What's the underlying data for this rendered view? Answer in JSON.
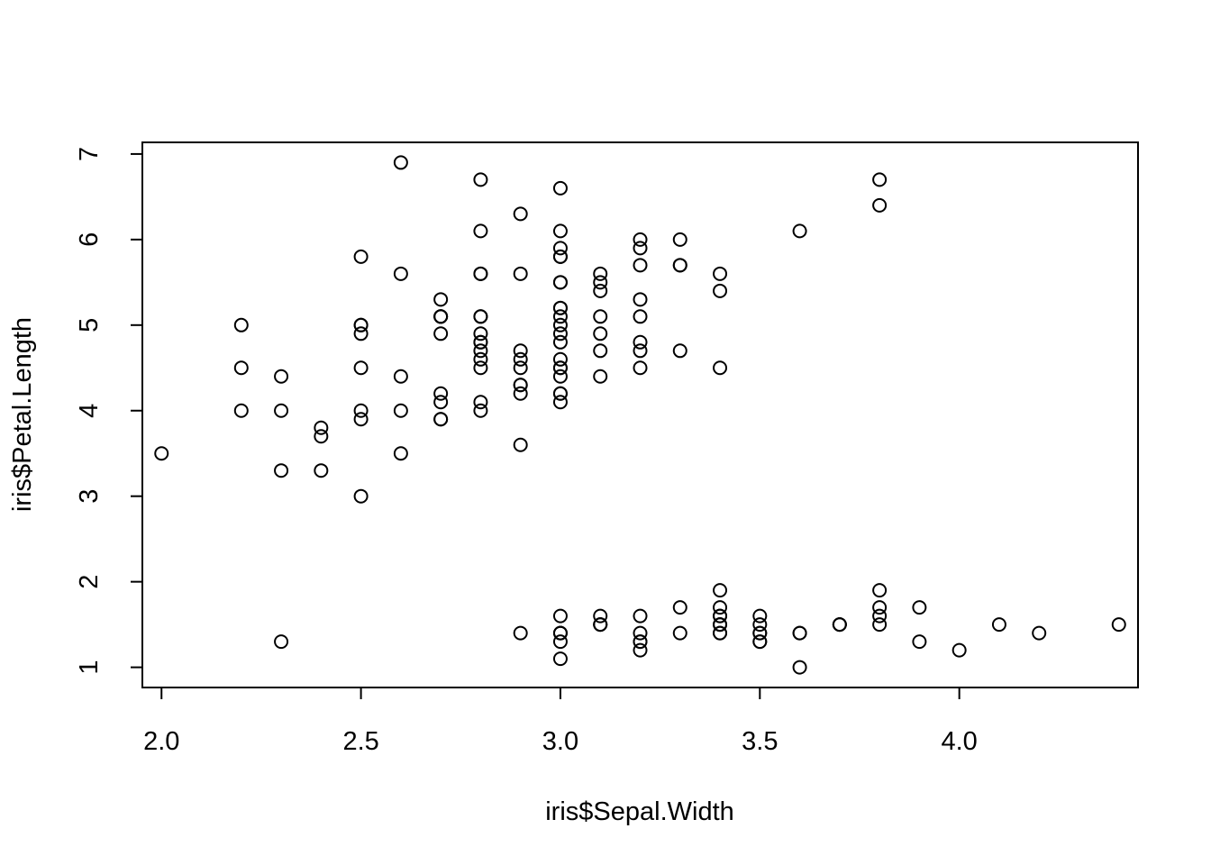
{
  "chart_data": {
    "type": "scatter",
    "title": "",
    "xlabel": "iris$Sepal.Width",
    "ylabel": "iris$Petal.Length",
    "xlim": [
      1.952,
      4.448
    ],
    "ylim": [
      0.764,
      7.136
    ],
    "xticks": [
      2.0,
      2.5,
      3.0,
      3.5,
      4.0
    ],
    "xtick_labels": [
      "2.0",
      "2.5",
      "3.0",
      "3.5",
      "4.0"
    ],
    "yticks": [
      1,
      2,
      3,
      4,
      5,
      6,
      7
    ],
    "ytick_labels": [
      "1",
      "2",
      "3",
      "4",
      "5",
      "6",
      "7"
    ],
    "grid": false,
    "legend": "none",
    "marker": "open-circle",
    "x": [
      3.5,
      3.0,
      3.2,
      3.1,
      3.6,
      3.9,
      3.4,
      3.4,
      2.9,
      3.1,
      3.7,
      3.4,
      3.0,
      3.0,
      4.0,
      4.4,
      3.9,
      3.5,
      3.8,
      3.8,
      3.4,
      3.7,
      3.6,
      3.3,
      3.4,
      3.0,
      3.4,
      3.5,
      3.4,
      3.2,
      3.1,
      3.4,
      4.1,
      4.2,
      3.1,
      3.2,
      3.5,
      3.6,
      3.0,
      3.4,
      3.5,
      2.3,
      3.2,
      3.5,
      3.8,
      3.0,
      3.8,
      3.2,
      3.7,
      3.3,
      3.2,
      3.2,
      3.1,
      2.3,
      2.8,
      2.8,
      3.3,
      2.4,
      2.9,
      2.7,
      2.0,
      3.0,
      2.2,
      2.9,
      2.9,
      3.1,
      3.0,
      2.7,
      2.2,
      2.5,
      3.2,
      2.8,
      2.5,
      2.8,
      2.9,
      3.0,
      2.8,
      3.0,
      2.9,
      2.6,
      2.4,
      2.4,
      2.7,
      2.7,
      3.0,
      3.4,
      3.1,
      2.3,
      3.0,
      2.5,
      2.6,
      3.0,
      2.6,
      2.3,
      2.7,
      3.0,
      2.9,
      2.9,
      2.5,
      2.8,
      3.3,
      2.7,
      3.0,
      2.9,
      3.0,
      3.0,
      2.5,
      2.9,
      2.5,
      3.6,
      3.2,
      2.7,
      3.0,
      2.5,
      2.8,
      3.2,
      3.0,
      3.8,
      2.6,
      2.2,
      3.2,
      2.8,
      2.8,
      2.7,
      3.3,
      3.2,
      2.8,
      3.0,
      2.8,
      3.0,
      2.8,
      3.8,
      2.8,
      2.8,
      2.6,
      3.0,
      3.4,
      3.1,
      3.0,
      3.1,
      3.1,
      3.1,
      2.7,
      3.2,
      3.3,
      3.0,
      2.5,
      3.0,
      3.4,
      3.0
    ],
    "y": [
      1.4,
      1.4,
      1.3,
      1.5,
      1.4,
      1.7,
      1.4,
      1.5,
      1.4,
      1.5,
      1.5,
      1.6,
      1.4,
      1.1,
      1.2,
      1.5,
      1.3,
      1.4,
      1.7,
      1.5,
      1.7,
      1.5,
      1.0,
      1.7,
      1.9,
      1.6,
      1.6,
      1.5,
      1.4,
      1.6,
      1.6,
      1.5,
      1.5,
      1.4,
      1.5,
      1.2,
      1.3,
      1.4,
      1.3,
      1.5,
      1.3,
      1.3,
      1.3,
      1.6,
      1.9,
      1.4,
      1.6,
      1.4,
      1.5,
      1.4,
      4.7,
      4.5,
      4.9,
      4.0,
      4.6,
      4.5,
      4.7,
      3.3,
      4.6,
      3.9,
      3.5,
      4.2,
      4.0,
      4.7,
      3.6,
      4.4,
      4.5,
      4.1,
      4.5,
      3.9,
      4.8,
      4.0,
      4.9,
      4.7,
      4.3,
      4.4,
      4.8,
      5.0,
      4.5,
      3.5,
      3.8,
      3.7,
      3.9,
      5.1,
      4.5,
      4.5,
      4.7,
      4.4,
      4.1,
      4.0,
      4.4,
      4.6,
      4.0,
      3.3,
      4.2,
      4.2,
      4.2,
      4.3,
      3.0,
      4.1,
      6.0,
      5.1,
      5.9,
      5.6,
      5.8,
      6.6,
      4.5,
      6.3,
      5.8,
      6.1,
      5.1,
      5.3,
      5.5,
      5.0,
      5.1,
      5.3,
      5.5,
      6.7,
      6.9,
      5.0,
      5.7,
      4.9,
      6.7,
      4.9,
      5.7,
      6.0,
      4.8,
      4.9,
      5.6,
      5.8,
      6.1,
      6.4,
      5.6,
      5.1,
      5.6,
      6.1,
      5.6,
      5.5,
      4.8,
      5.4,
      5.6,
      5.1,
      5.1,
      5.9,
      5.7,
      5.2,
      5.0,
      5.2,
      5.4,
      5.1
    ]
  }
}
